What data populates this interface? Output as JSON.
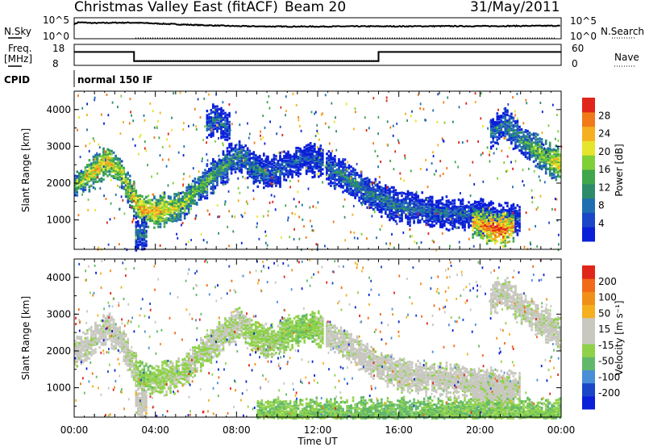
{
  "header": {
    "radar_title": "Christmas Valley East (fitACF)",
    "beam": "Beam 20",
    "date": "31/May/2011"
  },
  "aux": {
    "nsky_label": "N.Sky",
    "nsearch_label": "N.Search",
    "nsky_ticks": [
      "10^5",
      "10^0"
    ],
    "nsearch_ticks": [
      "10^5",
      "10^0"
    ],
    "freq_label_1": "Freq.",
    "freq_label_2": "[MHz]",
    "freq_ticks": [
      "18",
      "8"
    ],
    "nave_label": "Nave",
    "nave_ticks": [
      "60",
      "0"
    ],
    "cpid_label": "CPID",
    "cpid_text": "normal 150 IF"
  },
  "xaxis": {
    "label": "Time UT",
    "ticks": [
      "00:00",
      "04:00",
      "08:00",
      "12:00",
      "16:00",
      "20:00",
      "00:00"
    ],
    "hours": [
      0,
      4,
      8,
      12,
      16,
      20,
      24
    ]
  },
  "chart_data": [
    {
      "type": "heatmap",
      "name": "power",
      "ylabel": "Slant Range [km]",
      "yticks": [
        "4000",
        "3000",
        "2000",
        "1000"
      ],
      "ylim": [
        200,
        4500
      ],
      "xlim": [
        0,
        24
      ],
      "colorbar_label": "Power [dB]",
      "colorbar_ticks": [
        "28",
        "24",
        "20",
        "16",
        "12",
        "8",
        "4"
      ],
      "colorbar_range": [
        0,
        30
      ],
      "colors": [
        "#0a1fd8",
        "#1c46c8",
        "#1f6fb0",
        "#2e8b6a",
        "#3fa64c",
        "#7fcf37",
        "#e6e52d",
        "#f5b020",
        "#f07a1a",
        "#e0261a"
      ],
      "bands": [
        {
          "t": [
            0,
            0.7,
            1.6,
            2.3,
            2.8,
            3.3,
            4.0,
            5.2,
            6.5,
            7.4,
            8.1,
            8.8,
            9.6,
            10.6,
            11.5,
            12.2
          ],
          "r": [
            2000,
            2250,
            2650,
            2300,
            1700,
            1300,
            1250,
            1400,
            2100,
            2500,
            2800,
            2450,
            2300,
            2550,
            2700,
            2600
          ],
          "p": [
            16,
            20,
            22,
            18,
            20,
            24,
            22,
            18,
            14,
            12,
            10,
            10,
            8,
            6,
            6,
            6
          ]
        },
        {
          "t": [
            12.4,
            13.5,
            14.5,
            16.0,
            18.0,
            20.0,
            22.0
          ],
          "r": [
            2500,
            2150,
            1750,
            1400,
            1250,
            1150,
            1050
          ],
          "p": [
            8,
            10,
            10,
            8,
            8,
            6,
            6
          ]
        },
        {
          "t": [
            19.6,
            20.3,
            21.0,
            21.7
          ],
          "r": [
            1000,
            850,
            780,
            850
          ],
          "p": [
            22,
            26,
            28,
            22
          ]
        },
        {
          "t": [
            20.5,
            21.2,
            22.0,
            22.8,
            23.5,
            24.0
          ],
          "r": [
            3400,
            3650,
            3200,
            2900,
            2650,
            2500
          ],
          "p": [
            8,
            10,
            12,
            16,
            20,
            22
          ]
        },
        {
          "t": [
            3.0,
            3.6
          ],
          "r": [
            650,
            620
          ],
          "p": [
            10,
            8
          ]
        },
        {
          "t": [
            6.5,
            7.0,
            7.6
          ],
          "r": [
            3600,
            3800,
            3500
          ],
          "p": [
            8,
            8,
            6
          ]
        }
      ]
    },
    {
      "type": "heatmap",
      "name": "velocity",
      "ylabel": "Slant Range [km]",
      "yticks": [
        "4000",
        "3000",
        "2000",
        "1000"
      ],
      "ylim": [
        200,
        4500
      ],
      "xlim": [
        0,
        24
      ],
      "colorbar_label": "Velocity [m s⁻¹]",
      "colorbar_ticks": [
        "200",
        "100",
        "50",
        "15",
        "-15",
        "-50",
        "-100",
        "-200"
      ],
      "colorbar_range": [
        -250,
        250
      ],
      "colors": [
        "#0a1fd8",
        "#1c46c8",
        "#4a8ed8",
        "#62b86a",
        "#8fd24a",
        "#c8c8c0",
        "#c8c8c0",
        "#f5b020",
        "#f0901a",
        "#f06a1a",
        "#e0261a"
      ],
      "bands": [
        {
          "t": [
            0,
            0.7,
            1.6,
            2.3,
            2.8,
            3.3,
            4.0,
            5.2,
            6.5,
            7.4,
            8.1,
            8.8,
            9.6,
            10.6,
            11.5,
            12.2
          ],
          "r": [
            2000,
            2250,
            2650,
            2300,
            1700,
            1300,
            1250,
            1400,
            2100,
            2500,
            2800,
            2450,
            2300,
            2550,
            2700,
            2600
          ],
          "v": [
            0,
            0,
            0,
            0,
            -10,
            -60,
            -40,
            -30,
            -20,
            -10,
            -20,
            -40,
            -40,
            -50,
            -60,
            -30
          ]
        },
        {
          "t": [
            12.4,
            13.5,
            14.5,
            16.0,
            18.0,
            20.0,
            22.0
          ],
          "r": [
            2500,
            2150,
            1750,
            1400,
            1250,
            1150,
            1050
          ],
          "v": [
            0,
            0,
            0,
            0,
            0,
            0,
            0
          ]
        },
        {
          "t": [
            19.6,
            20.3,
            21.0,
            21.7
          ],
          "r": [
            1000,
            850,
            780,
            850
          ],
          "v": [
            0,
            0,
            0,
            0
          ]
        },
        {
          "t": [
            20.5,
            21.2,
            22.0,
            22.8,
            23.5,
            24.0
          ],
          "r": [
            3400,
            3650,
            3200,
            2900,
            2650,
            2500
          ],
          "v": [
            0,
            0,
            0,
            0,
            0,
            0
          ]
        },
        {
          "t": [
            3.0,
            3.6
          ],
          "r": [
            650,
            620
          ],
          "v": [
            40,
            40
          ]
        },
        {
          "t": [
            9.0,
            12.0,
            15.0,
            18.0,
            21.0,
            24.0
          ],
          "r": [
            300,
            280,
            300,
            300,
            300,
            300
          ],
          "v": [
            -60,
            -60,
            -80,
            -70,
            -60,
            -60
          ]
        }
      ]
    }
  ],
  "aux_data": {
    "freq_mhz_segments": [
      {
        "t0": 0,
        "t1": 2.95,
        "f": 14.4
      },
      {
        "t0": 2.95,
        "t1": 15.0,
        "f": 10.0
      },
      {
        "t0": 15.0,
        "t1": 24,
        "f": 14.4
      }
    ],
    "freq_range": [
      8,
      18
    ],
    "nave": 14,
    "nave_range": [
      0,
      60
    ],
    "nsky_log10_profile": {
      "t": [
        0,
        0.2,
        1,
        2,
        3,
        4,
        6,
        8,
        10,
        12,
        14,
        16,
        18,
        20,
        22,
        24
      ],
      "v": [
        3.8,
        4.3,
        4.1,
        4.2,
        4.2,
        4.0,
        3.6,
        3.3,
        3.2,
        3.2,
        3.25,
        3.25,
        3.3,
        3.3,
        3.35,
        3.4
      ]
    },
    "log_range": [
      0,
      5.5
    ]
  }
}
